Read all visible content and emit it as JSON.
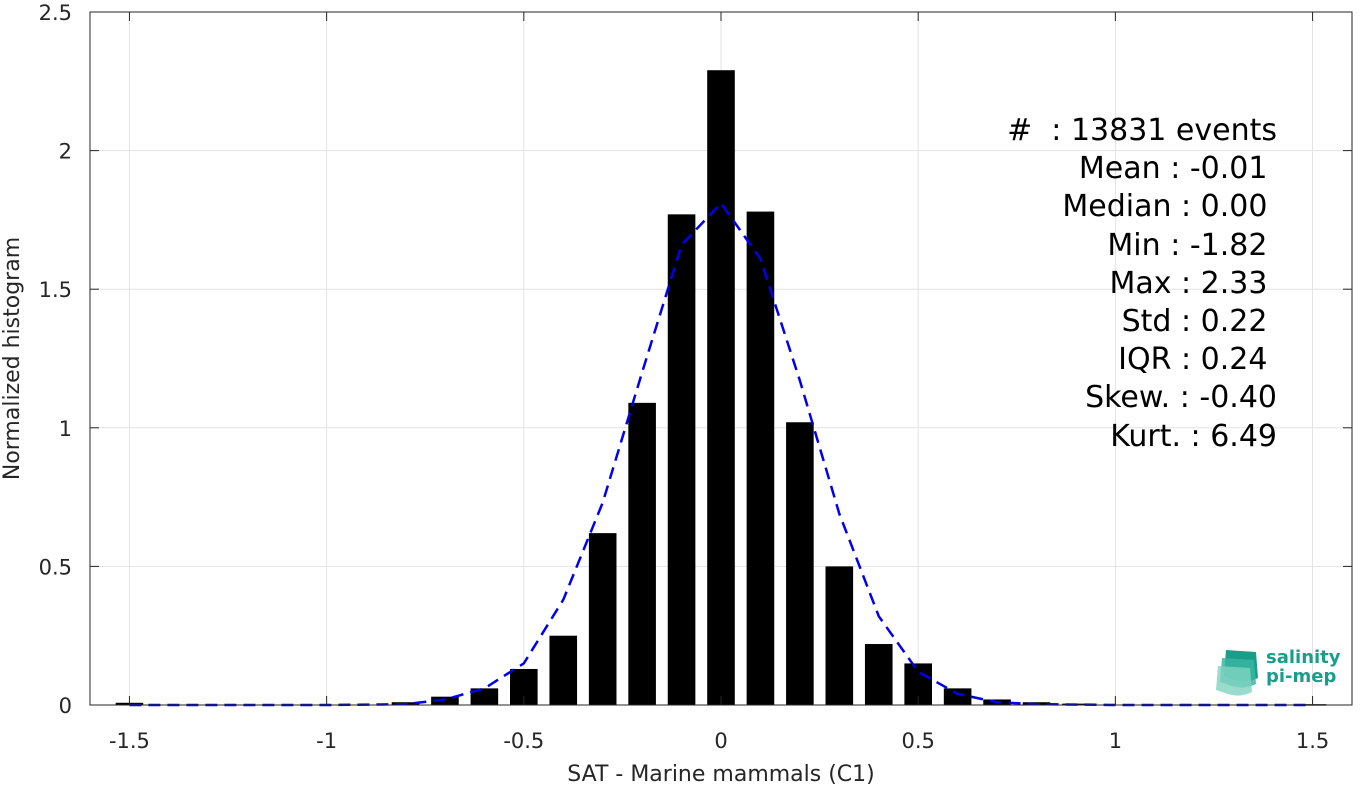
{
  "chart_data": {
    "type": "bar",
    "xlabel": "SAT - Marine mammals (C1)",
    "ylabel": "Normalized histogram",
    "xlim": [
      -1.6,
      1.6
    ],
    "ylim": [
      0,
      2.5
    ],
    "xticks": [
      -1.5,
      -1,
      -0.5,
      0,
      0.5,
      1,
      1.5
    ],
    "xtick_labels": [
      "-1.5",
      "-1",
      "-0.5",
      "0",
      "0.5",
      "1",
      "1.5"
    ],
    "yticks": [
      0,
      0.5,
      1,
      1.5,
      2,
      2.5
    ],
    "ytick_labels": [
      "0",
      "0.5",
      "1",
      "1.5",
      "2",
      "2.5"
    ],
    "grid": true,
    "bar_width": 0.07,
    "bars": [
      {
        "x": -1.5,
        "y": 0.008
      },
      {
        "x": -0.8,
        "y": 0.01
      },
      {
        "x": -0.7,
        "y": 0.03
      },
      {
        "x": -0.6,
        "y": 0.06
      },
      {
        "x": -0.5,
        "y": 0.13
      },
      {
        "x": -0.4,
        "y": 0.25
      },
      {
        "x": -0.3,
        "y": 0.62
      },
      {
        "x": -0.2,
        "y": 1.09
      },
      {
        "x": -0.1,
        "y": 1.77
      },
      {
        "x": 0.0,
        "y": 2.29
      },
      {
        "x": 0.1,
        "y": 1.78
      },
      {
        "x": 0.2,
        "y": 1.02
      },
      {
        "x": 0.3,
        "y": 0.5
      },
      {
        "x": 0.4,
        "y": 0.22
      },
      {
        "x": 0.5,
        "y": 0.15
      },
      {
        "x": 0.6,
        "y": 0.06
      },
      {
        "x": 0.7,
        "y": 0.02
      },
      {
        "x": 0.8,
        "y": 0.01
      },
      {
        "x": 0.9,
        "y": 0.005
      },
      {
        "x": 1.5,
        "y": 0.003
      }
    ],
    "fit_line": {
      "style": "dashed",
      "color": "#0000ee",
      "x": [
        -1.5,
        -1.2,
        -1.0,
        -0.8,
        -0.7,
        -0.6,
        -0.5,
        -0.4,
        -0.3,
        -0.2,
        -0.1,
        0.0,
        0.1,
        0.2,
        0.3,
        0.4,
        0.5,
        0.6,
        0.7,
        0.8,
        1.0,
        1.2,
        1.5
      ],
      "y": [
        0.0,
        0.0,
        0.0,
        0.003,
        0.02,
        0.06,
        0.15,
        0.38,
        0.73,
        1.2,
        1.66,
        1.81,
        1.61,
        1.17,
        0.69,
        0.32,
        0.12,
        0.04,
        0.01,
        0.003,
        0.0,
        0.0,
        0.0
      ]
    },
    "bar_color": "#000000"
  },
  "stats": [
    "#  : 13831 events",
    "Mean : -0.01 ",
    "Median : 0.00 ",
    "Min : -1.82 ",
    "Max : 2.33 ",
    "Std : 0.22 ",
    "IQR : 0.24 ",
    "Skew. : -0.40",
    "Kurt. : 6.49"
  ],
  "logo": {
    "line1": "salinity",
    "line2": "pi-mep",
    "color": "#1a9e8a"
  }
}
